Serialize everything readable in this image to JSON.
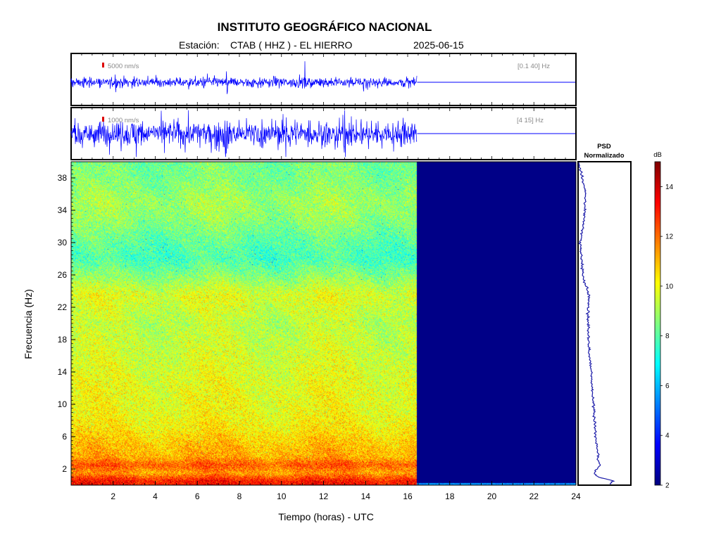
{
  "header": {
    "institution": "INSTITUTO GEOGRÁFICO NACIONAL",
    "station_prefix": "Estación:",
    "station": "CTAB ( HHZ ) - EL HIERRO",
    "date": "2025-06-15"
  },
  "colors": {
    "trace": "#0000ff",
    "scale_bar": "#dd0000",
    "no_data": "#000080",
    "psd_line": "#1a1aa8",
    "annotation": "#888888"
  },
  "chart_data": [
    {
      "type": "line",
      "name": "seismogram-broadband",
      "scale_label": "5000 nm/s",
      "band_label": "[0.1 40] Hz",
      "xlim": [
        0,
        24
      ],
      "data_end_hour": 16.45,
      "baseline": 0,
      "typical_amplitude": 0.12,
      "spike_hours": [
        2.1,
        7.4,
        11.1,
        13.9
      ]
    },
    {
      "type": "line",
      "name": "seismogram-filtered",
      "scale_label": "1000 nm/s",
      "band_label": "[4 15] Hz",
      "xlim": [
        0,
        24
      ],
      "data_end_hour": 16.45,
      "baseline": 0,
      "typical_amplitude": 0.35,
      "spike_hours": [
        3.1,
        7.35,
        10.2,
        13.0
      ]
    },
    {
      "type": "heatmap",
      "name": "spectrogram",
      "xlabel": "Tiempo (horas) - UTC",
      "ylabel": "Frecuencia  (Hz)",
      "xlim": [
        0,
        24
      ],
      "ylim": [
        0,
        40
      ],
      "xticks": [
        2,
        4,
        6,
        8,
        10,
        12,
        14,
        16,
        18,
        20,
        22,
        24
      ],
      "yticks": [
        2,
        6,
        10,
        14,
        18,
        22,
        26,
        30,
        34,
        38
      ],
      "data_end_hour": 16.45,
      "colorbar": {
        "label": "dB",
        "range": [
          2,
          15
        ],
        "ticks": [
          2,
          4,
          6,
          8,
          10,
          12,
          14
        ],
        "colormap": "jet"
      },
      "mean_db_profile": {
        "freq_hz": [
          0.5,
          1.5,
          2.5,
          3.5,
          5,
          7,
          9,
          12,
          16,
          20,
          23.5,
          26,
          28,
          30,
          33,
          35,
          38,
          40
        ],
        "db": [
          13.2,
          11.4,
          12.3,
          11.2,
          10.9,
          10.3,
          10.0,
          9.9,
          9.6,
          9.3,
          9.8,
          8.6,
          7.8,
          8.1,
          8.8,
          9.0,
          8.5,
          8.4
        ]
      }
    },
    {
      "type": "line",
      "name": "psd-normalizado",
      "title": "PSD\nNormalizado",
      "title_line1": "PSD",
      "title_line2": "Normalizado",
      "freq_hz": [
        0.2,
        0.5,
        1,
        1.5,
        2,
        2.5,
        3,
        4,
        5,
        6,
        7,
        8,
        10,
        12,
        14,
        16,
        18,
        20,
        22,
        23.5,
        25,
        26,
        28,
        30,
        32,
        34,
        36,
        38,
        39,
        40
      ],
      "value": [
        0.62,
        0.68,
        0.38,
        0.3,
        0.36,
        0.42,
        0.37,
        0.37,
        0.35,
        0.33,
        0.32,
        0.3,
        0.29,
        0.26,
        0.24,
        0.21,
        0.19,
        0.18,
        0.18,
        0.2,
        0.12,
        0.08,
        0.05,
        0.03,
        0.08,
        0.12,
        0.13,
        0.07,
        0.02,
        0.0
      ]
    }
  ]
}
